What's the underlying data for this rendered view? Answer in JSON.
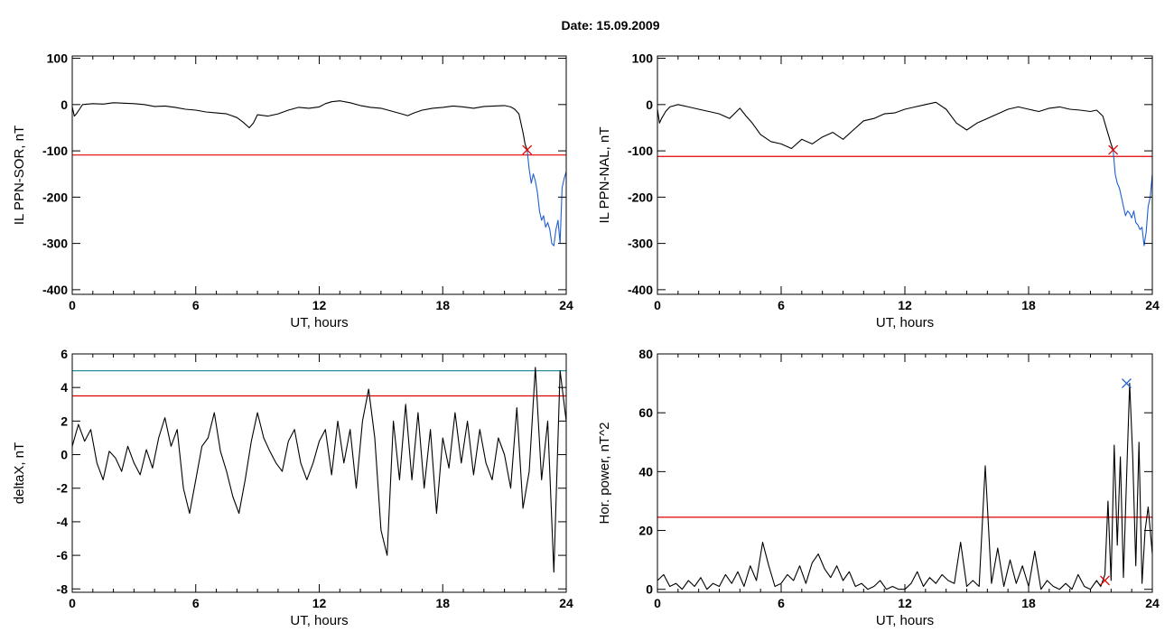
{
  "figure": {
    "title": "Date:  15.09.2009"
  },
  "chart_data": [
    {
      "type": "line",
      "xlabel": "UT, hours",
      "ylabel": "IL PPN-SOR, nT",
      "xlim": [
        0,
        24
      ],
      "ylim": [
        -410,
        105
      ],
      "xticks": [
        0,
        6,
        12,
        18,
        24
      ],
      "yticks": [
        100,
        0,
        -100,
        -200,
        -300,
        -400
      ],
      "grid": false,
      "hlines": [
        {
          "y": -109,
          "color": "#e00000"
        }
      ],
      "markers": [
        {
          "x": 22.1,
          "y": -98,
          "symbol": "x",
          "color": "#e00000"
        }
      ],
      "series": [
        {
          "color": "#000000",
          "x": [
            0,
            0.1,
            0.2,
            0.35,
            0.5,
            1,
            1.5,
            2,
            2.5,
            3,
            3.5,
            4,
            4.5,
            5,
            5.5,
            6,
            6.5,
            7,
            7.5,
            8,
            8.3,
            8.6,
            8.8,
            9,
            9.5,
            10,
            10.5,
            11,
            11.5,
            12,
            12.3,
            12.6,
            13,
            13.5,
            14,
            14.5,
            15,
            15.5,
            16,
            16.3,
            16.6,
            17,
            17.5,
            18,
            18.5,
            19,
            19.5,
            20,
            20.5,
            21,
            21.3,
            21.5,
            21.7,
            21.9,
            22.0,
            22.1
          ],
          "y": [
            -5,
            -25,
            -20,
            -10,
            0,
            2,
            1,
            4,
            3,
            2,
            0,
            -4,
            -3,
            -6,
            -10,
            -12,
            -16,
            -18,
            -20,
            -28,
            -38,
            -50,
            -40,
            -22,
            -25,
            -20,
            -12,
            -6,
            -8,
            -5,
            2,
            6,
            8,
            4,
            -2,
            -6,
            -8,
            -14,
            -20,
            -24,
            -18,
            -12,
            -8,
            -6,
            -3,
            -5,
            -8,
            -4,
            -3,
            -2,
            -5,
            -10,
            -20,
            -60,
            -85,
            -98
          ]
        },
        {
          "color": "#1f5fd0",
          "x": [
            22.1,
            22.2,
            22.3,
            22.4,
            22.5,
            22.6,
            22.7,
            22.8,
            22.9,
            23.0,
            23.1,
            23.2,
            23.3,
            23.4,
            23.5,
            23.6,
            23.7,
            23.8,
            23.9,
            24.0
          ],
          "y": [
            -98,
            -140,
            -170,
            -150,
            -165,
            -190,
            -230,
            -250,
            -240,
            -265,
            -255,
            -270,
            -300,
            -305,
            -270,
            -250,
            -300,
            -180,
            -160,
            -145
          ]
        }
      ]
    },
    {
      "type": "line",
      "xlabel": "UT, hours",
      "ylabel": "IL PPN-NAL, nT",
      "xlim": [
        0,
        24
      ],
      "ylim": [
        -410,
        105
      ],
      "xticks": [
        0,
        6,
        12,
        18,
        24
      ],
      "yticks": [
        100,
        0,
        -100,
        -200,
        -300,
        -400
      ],
      "grid": false,
      "hlines": [
        {
          "y": -112,
          "color": "#e00000"
        }
      ],
      "markers": [
        {
          "x": 22.1,
          "y": -98,
          "symbol": "x",
          "color": "#e00000"
        }
      ],
      "series": [
        {
          "color": "#000000",
          "x": [
            0,
            0.1,
            0.2,
            0.4,
            0.6,
            1,
            1.5,
            2,
            2.5,
            3,
            3.5,
            4,
            4.3,
            4.6,
            5,
            5.5,
            6,
            6.5,
            7,
            7.5,
            8,
            8.5,
            9,
            9.5,
            10,
            10.5,
            11,
            11.5,
            12,
            12.5,
            13,
            13.5,
            14,
            14.5,
            15,
            15.5,
            16,
            16.5,
            17,
            17.5,
            18,
            18.5,
            19,
            19.5,
            20,
            20.5,
            21,
            21.3,
            21.6,
            21.9,
            22.0,
            22.1
          ],
          "y": [
            -10,
            -40,
            -30,
            -15,
            -5,
            0,
            -5,
            -10,
            -15,
            -20,
            -30,
            -8,
            -25,
            -40,
            -65,
            -80,
            -85,
            -95,
            -75,
            -85,
            -70,
            -60,
            -75,
            -55,
            -35,
            -30,
            -20,
            -18,
            -10,
            -5,
            0,
            5,
            -10,
            -40,
            -55,
            -40,
            -30,
            -20,
            -10,
            -5,
            -10,
            -15,
            -8,
            -5,
            -10,
            -12,
            -15,
            -12,
            -25,
            -70,
            -85,
            -98
          ]
        },
        {
          "color": "#1f5fd0",
          "x": [
            22.1,
            22.2,
            22.3,
            22.4,
            22.5,
            22.6,
            22.7,
            22.8,
            22.9,
            23.0,
            23.1,
            23.2,
            23.3,
            23.4,
            23.5,
            23.6,
            23.7,
            23.8,
            23.9,
            24.0
          ],
          "y": [
            -98,
            -150,
            -170,
            -180,
            -200,
            -220,
            -240,
            -230,
            -235,
            -245,
            -230,
            -255,
            -260,
            -270,
            -265,
            -305,
            -275,
            -220,
            -200,
            -150
          ]
        }
      ]
    },
    {
      "type": "line",
      "xlabel": "UT, hours",
      "ylabel": "deltaX, nT",
      "xlim": [
        0,
        24
      ],
      "ylim": [
        -8.2,
        6
      ],
      "xticks": [
        0,
        6,
        12,
        18,
        24
      ],
      "yticks": [
        6,
        4,
        2,
        0,
        -2,
        -4,
        -6,
        -8
      ],
      "grid": false,
      "hlines": [
        {
          "y": 5.0,
          "color": "#2a8f9a"
        },
        {
          "y": 3.5,
          "color": "#e00000"
        }
      ],
      "markers": [],
      "series": [
        {
          "color": "#000000",
          "x": [
            0,
            0.3,
            0.6,
            0.9,
            1.2,
            1.5,
            1.8,
            2.1,
            2.4,
            2.7,
            3.0,
            3.3,
            3.6,
            3.9,
            4.2,
            4.5,
            4.8,
            5.1,
            5.4,
            5.7,
            6.0,
            6.3,
            6.6,
            6.9,
            7.2,
            7.5,
            7.8,
            8.1,
            8.4,
            8.7,
            9.0,
            9.3,
            9.6,
            9.9,
            10.2,
            10.5,
            10.8,
            11.1,
            11.4,
            11.7,
            12.0,
            12.3,
            12.6,
            12.9,
            13.2,
            13.5,
            13.8,
            14.1,
            14.4,
            14.7,
            15.0,
            15.3,
            15.6,
            15.9,
            16.2,
            16.5,
            16.8,
            17.1,
            17.4,
            17.7,
            18.0,
            18.3,
            18.6,
            18.9,
            19.2,
            19.5,
            19.8,
            20.1,
            20.4,
            20.7,
            21.0,
            21.3,
            21.6,
            21.9,
            22.2,
            22.5,
            22.8,
            23.1,
            23.4,
            23.7,
            24.0
          ],
          "y": [
            0.5,
            1.8,
            0.8,
            1.5,
            -0.5,
            -1.5,
            0.2,
            -0.2,
            -1.0,
            0.5,
            -0.5,
            -1.2,
            0.3,
            -0.8,
            1.0,
            2.2,
            0.5,
            1.5,
            -2.0,
            -3.5,
            -1.5,
            0.5,
            1.0,
            2.5,
            0.2,
            -1.0,
            -2.5,
            -3.5,
            -1.5,
            0.8,
            2.5,
            1.0,
            0.2,
            -0.5,
            -1.0,
            0.8,
            1.5,
            -0.5,
            -1.5,
            -0.5,
            0.8,
            1.5,
            -1.2,
            2.0,
            -0.5,
            1.5,
            -2.0,
            2.0,
            3.9,
            1.0,
            -4.5,
            -6.0,
            2.0,
            -1.5,
            3.0,
            -1.5,
            2.5,
            -2.0,
            1.5,
            -3.5,
            1.0,
            -0.8,
            2.5,
            -0.5,
            2.0,
            -1.2,
            1.5,
            -0.5,
            -1.5,
            1.0,
            0.0,
            -2.0,
            2.8,
            -3.2,
            -1.0,
            5.2,
            -1.5,
            2.0,
            -7.0,
            5.0,
            2.0
          ]
        }
      ]
    },
    {
      "type": "line",
      "xlabel": "UT, hours",
      "ylabel": "Hor. power, nT^2",
      "xlim": [
        0,
        24
      ],
      "ylim": [
        -1,
        80
      ],
      "xticks": [
        0,
        6,
        12,
        18,
        24
      ],
      "yticks": [
        80,
        60,
        40,
        20,
        0
      ],
      "grid": false,
      "hlines": [
        {
          "y": 24.5,
          "color": "#e00000"
        }
      ],
      "markers": [
        {
          "x": 22.75,
          "y": 70,
          "symbol": "x",
          "color": "#1f5fd0"
        },
        {
          "x": 21.7,
          "y": 3,
          "symbol": "x",
          "color": "#e00000"
        }
      ],
      "series": [
        {
          "color": "#000000",
          "x": [
            0,
            0.3,
            0.6,
            0.9,
            1.2,
            1.5,
            1.8,
            2.1,
            2.4,
            2.7,
            3.0,
            3.3,
            3.6,
            3.9,
            4.2,
            4.5,
            4.8,
            5.1,
            5.4,
            5.7,
            6.0,
            6.3,
            6.6,
            6.9,
            7.2,
            7.5,
            7.8,
            8.1,
            8.4,
            8.7,
            9.0,
            9.3,
            9.6,
            9.9,
            10.2,
            10.5,
            10.8,
            11.1,
            11.4,
            11.7,
            12.0,
            12.3,
            12.6,
            12.9,
            13.2,
            13.5,
            13.8,
            14.1,
            14.4,
            14.7,
            15.0,
            15.3,
            15.6,
            15.9,
            16.2,
            16.5,
            16.8,
            17.1,
            17.4,
            17.7,
            18.0,
            18.3,
            18.6,
            18.9,
            19.2,
            19.5,
            19.8,
            20.1,
            20.4,
            20.7,
            21.0,
            21.3,
            21.5,
            21.7,
            21.85,
            22.0,
            22.15,
            22.3,
            22.45,
            22.6,
            22.75,
            22.9,
            23.05,
            23.2,
            23.35,
            23.5,
            23.65,
            23.8,
            24.0
          ],
          "y": [
            3,
            5,
            1,
            2,
            0,
            3,
            1,
            4,
            0,
            2,
            1,
            5,
            2,
            6,
            1,
            8,
            3,
            16,
            8,
            1,
            2,
            5,
            3,
            8,
            2,
            9,
            12,
            7,
            4,
            8,
            3,
            6,
            1,
            2,
            0,
            1,
            3,
            0,
            1,
            0,
            0,
            2,
            6,
            1,
            4,
            2,
            5,
            3,
            2,
            16,
            1,
            3,
            1,
            42,
            2,
            14,
            1,
            10,
            2,
            8,
            1,
            13,
            0,
            3,
            1,
            0,
            2,
            0,
            5,
            1,
            0,
            3,
            1,
            5,
            30,
            3,
            49,
            15,
            45,
            4,
            38,
            70,
            45,
            8,
            50,
            2,
            20,
            28,
            12
          ]
        }
      ]
    }
  ]
}
